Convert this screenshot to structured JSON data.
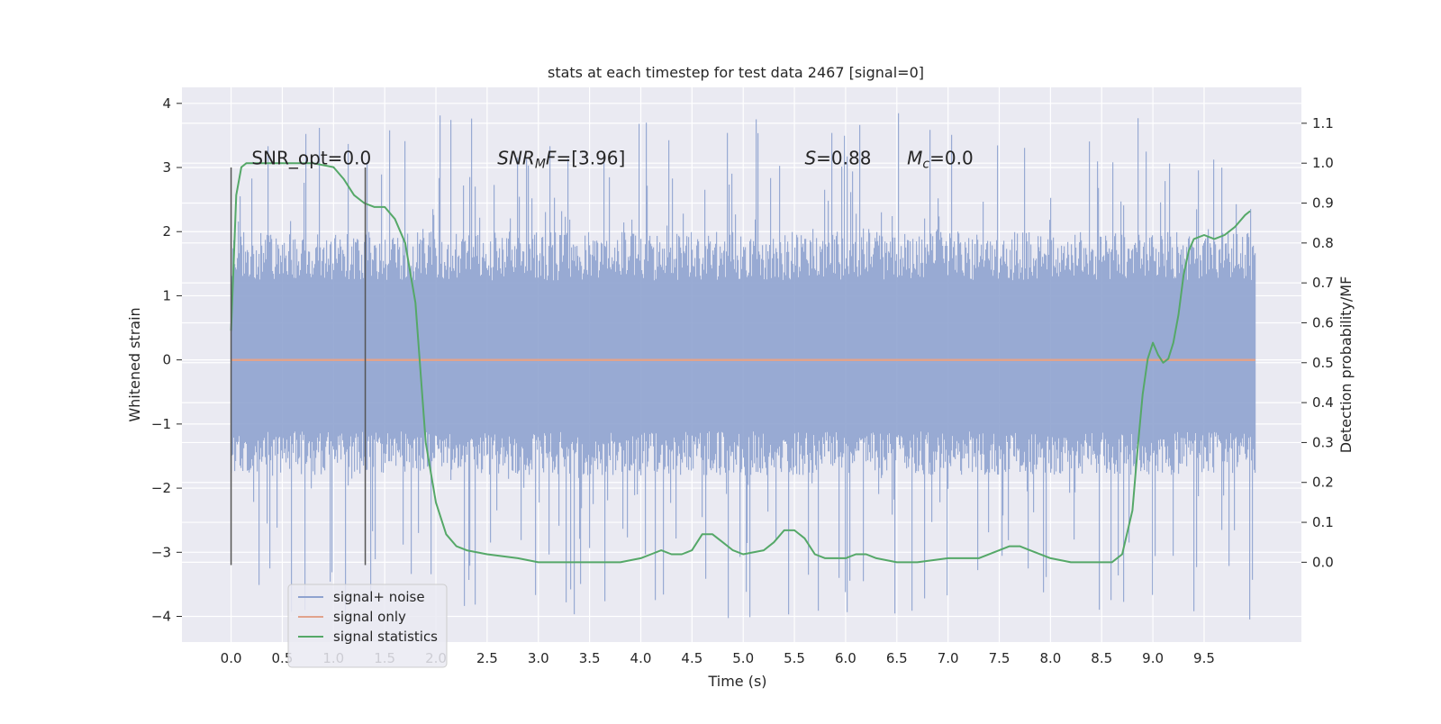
{
  "chart_data": {
    "type": "line",
    "title": "stats at each timestep for test data 2467 [signal=0]",
    "xlabel": "Time (s)",
    "ylabel": "Whitened strain",
    "y2label": "Detection probability/MF",
    "xlim": [
      -0.48,
      10.45
    ],
    "ylim": [
      -4.4,
      4.25
    ],
    "y2lim": [
      -0.2,
      1.19
    ],
    "x_ticks": [
      0.0,
      0.5,
      1.0,
      1.5,
      2.0,
      2.5,
      3.0,
      3.5,
      4.0,
      4.5,
      5.0,
      5.5,
      6.0,
      6.5,
      7.0,
      7.5,
      8.0,
      8.5,
      9.0,
      9.5
    ],
    "x_tick_labels": [
      "0.0",
      "0.5",
      "1.0",
      "1.5",
      "2.0",
      "2.5",
      "3.0",
      "3.5",
      "4.0",
      "4.5",
      "5.0",
      "5.5",
      "6.0",
      "6.5",
      "7.0",
      "7.5",
      "8.0",
      "8.5",
      "9.0",
      "9.5"
    ],
    "y_ticks": [
      4,
      3,
      2,
      1,
      0,
      -1,
      -2,
      -3,
      -4
    ],
    "y_tick_labels": [
      "4",
      "3",
      "2",
      "1",
      "0",
      "−1",
      "−2",
      "−3",
      "−4"
    ],
    "y2_ticks": [
      1.1,
      1.0,
      0.9,
      0.8,
      0.7,
      0.6,
      0.5,
      0.4,
      0.3,
      0.2,
      0.1,
      0.0
    ],
    "y2_tick_labels": [
      "1.1",
      "1.0",
      "0.9",
      "0.8",
      "0.7",
      "0.6",
      "0.5",
      "0.4",
      "0.3",
      "0.2",
      "0.1",
      "0.0"
    ],
    "grid": true,
    "legend_position": "lower-left",
    "series": [
      {
        "name": "signal+ noise",
        "color": "#8fa3cf",
        "kind": "noise-band",
        "x_range": [
          0.0,
          10.0
        ],
        "typical_range": [
          -1.8,
          2.0
        ],
        "peak_range": [
          -4.05,
          3.85
        ]
      },
      {
        "name": "signal only",
        "color": "#e1a38c",
        "x": [
          0.0,
          10.0
        ],
        "y": [
          0.0,
          0.0
        ]
      },
      {
        "name": "signal statistics",
        "color": "#55a868",
        "axis": "right",
        "x": [
          0.0,
          0.05,
          0.1,
          0.15,
          0.2,
          0.3,
          0.5,
          0.8,
          1.0,
          1.1,
          1.2,
          1.3,
          1.4,
          1.5,
          1.6,
          1.7,
          1.8,
          1.9,
          2.0,
          2.1,
          2.2,
          2.3,
          2.5,
          2.8,
          3.0,
          3.5,
          3.8,
          4.0,
          4.1,
          4.2,
          4.3,
          4.4,
          4.5,
          4.6,
          4.7,
          4.8,
          4.9,
          5.0,
          5.2,
          5.3,
          5.4,
          5.5,
          5.6,
          5.7,
          5.8,
          5.9,
          6.0,
          6.1,
          6.2,
          6.3,
          6.5,
          6.7,
          7.0,
          7.3,
          7.5,
          7.6,
          7.7,
          7.8,
          8.0,
          8.2,
          8.5,
          8.6,
          8.7,
          8.8,
          8.85,
          8.9,
          8.95,
          9.0,
          9.05,
          9.1,
          9.15,
          9.2,
          9.25,
          9.3,
          9.35,
          9.4,
          9.5,
          9.6,
          9.7,
          9.8,
          9.9,
          9.95
        ],
        "y": [
          0.58,
          0.92,
          0.99,
          1.0,
          1.0,
          1.0,
          1.0,
          1.0,
          0.99,
          0.96,
          0.92,
          0.9,
          0.89,
          0.89,
          0.86,
          0.8,
          0.65,
          0.3,
          0.15,
          0.07,
          0.04,
          0.03,
          0.02,
          0.01,
          0.0,
          0.0,
          0.0,
          0.01,
          0.02,
          0.03,
          0.02,
          0.02,
          0.03,
          0.07,
          0.07,
          0.05,
          0.03,
          0.02,
          0.03,
          0.05,
          0.08,
          0.08,
          0.06,
          0.02,
          0.01,
          0.01,
          0.01,
          0.02,
          0.02,
          0.01,
          0.0,
          0.0,
          0.01,
          0.01,
          0.03,
          0.04,
          0.04,
          0.03,
          0.01,
          0.0,
          0.0,
          0.0,
          0.02,
          0.13,
          0.28,
          0.42,
          0.51,
          0.55,
          0.52,
          0.5,
          0.51,
          0.55,
          0.62,
          0.72,
          0.78,
          0.81,
          0.82,
          0.81,
          0.82,
          0.84,
          0.87,
          0.88
        ]
      }
    ],
    "vlines": [
      {
        "x": 0.0,
        "ymin": -3.2,
        "ymax": 3.0,
        "color": "#555555"
      },
      {
        "x": 1.31,
        "ymin": -3.2,
        "ymax": 3.0,
        "color": "#555555"
      }
    ],
    "annotations": [
      {
        "id": "snr-opt",
        "text": "SNR_opt=0.0",
        "x": 0.2,
        "y": 3.05
      },
      {
        "id": "snr-mf",
        "base": "SNR",
        "sub": "M",
        "rest": "F=[3.96]",
        "x": 2.6,
        "y": 3.05
      },
      {
        "id": "s",
        "base": "S",
        "rest": "=0.88",
        "x": 5.6,
        "y": 3.05
      },
      {
        "id": "mc",
        "base": "M",
        "sub": "c",
        "rest": "=0.0",
        "x": 6.6,
        "y": 3.05
      }
    ]
  }
}
